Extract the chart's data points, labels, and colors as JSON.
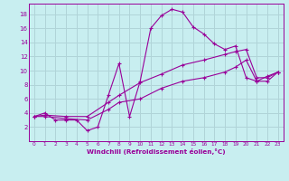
{
  "xlabel": "Windchill (Refroidissement éolien,°C)",
  "background_color": "#c8eef0",
  "line_color": "#990099",
  "grid_color": "#b0d4d8",
  "xlim": [
    -0.5,
    23.5
  ],
  "ylim": [
    0,
    19.5
  ],
  "xticks": [
    0,
    1,
    2,
    3,
    4,
    5,
    6,
    7,
    8,
    9,
    10,
    11,
    12,
    13,
    14,
    15,
    16,
    17,
    18,
    19,
    20,
    21,
    22,
    23
  ],
  "yticks": [
    2,
    4,
    6,
    8,
    10,
    12,
    14,
    16,
    18
  ],
  "line1_x": [
    0,
    1,
    2,
    3,
    4,
    5,
    6,
    7,
    8,
    9,
    10,
    11,
    12,
    13,
    14,
    15,
    16,
    17,
    18,
    19,
    20,
    21,
    22,
    23
  ],
  "line1_y": [
    3.5,
    4.0,
    3.0,
    3.0,
    3.0,
    1.5,
    2.0,
    6.5,
    11.0,
    3.5,
    8.5,
    16.0,
    17.8,
    18.7,
    18.3,
    16.2,
    15.2,
    13.8,
    13.0,
    13.5,
    9.0,
    8.5,
    9.2,
    9.8
  ],
  "line2_x": [
    0,
    1,
    3,
    5,
    7,
    8,
    10,
    12,
    14,
    16,
    18,
    19,
    20,
    21,
    22,
    23
  ],
  "line2_y": [
    3.5,
    3.7,
    3.5,
    3.5,
    5.5,
    6.5,
    8.3,
    9.5,
    10.8,
    11.5,
    12.3,
    12.7,
    13.0,
    9.0,
    9.0,
    9.8
  ],
  "line3_x": [
    0,
    1,
    3,
    5,
    7,
    8,
    10,
    12,
    14,
    16,
    18,
    19,
    20,
    21,
    22,
    23
  ],
  "line3_y": [
    3.5,
    3.5,
    3.2,
    3.0,
    4.5,
    5.5,
    6.0,
    7.5,
    8.5,
    9.0,
    9.8,
    10.5,
    11.5,
    8.5,
    8.5,
    9.8
  ]
}
